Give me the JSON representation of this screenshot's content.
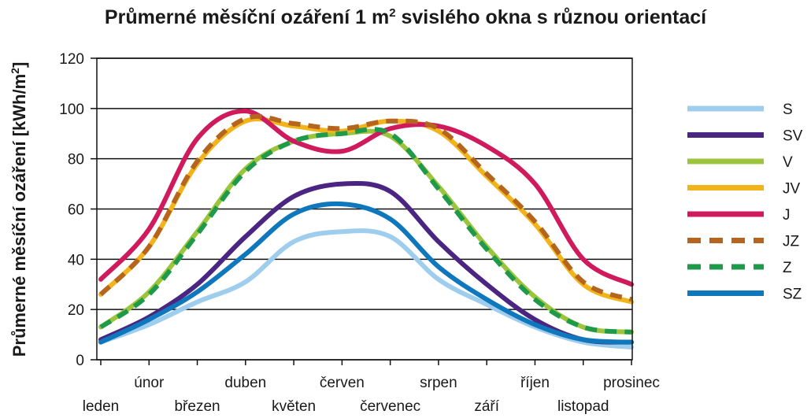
{
  "chart_data": {
    "type": "line",
    "title": "Průmerné měsíční ozáření 1 m² svislého okna s různou orientací",
    "title_parts": {
      "before_sup": "Průmerné měsíční ozáření 1 m",
      "sup": "2",
      "after_sup": " svislého okna s různou orientací"
    },
    "xlabel": "",
    "ylabel": "Průmerné měsíční ozáření [kWh/m²]",
    "ylabel_parts": {
      "before_sup": "Průmerné měsíční ozáření [kWh/m",
      "sup": "2",
      "after_sup": "]"
    },
    "categories": [
      "leden",
      "únor",
      "březen",
      "duben",
      "květen",
      "červen",
      "červenec",
      "srpen",
      "září",
      "říjen",
      "listopad",
      "prosinec"
    ],
    "ylim": [
      0,
      120
    ],
    "yticks": [
      0,
      20,
      40,
      60,
      80,
      100,
      120
    ],
    "grid": true,
    "legend_position": "right",
    "series": [
      {
        "name": "S",
        "color": "#9fcdee",
        "dashed": false,
        "values": [
          7,
          14,
          23,
          31,
          47,
          51,
          49,
          32,
          22,
          13,
          7,
          5
        ]
      },
      {
        "name": "SV",
        "color": "#4a2582",
        "dashed": false,
        "values": [
          8,
          17,
          30,
          49,
          65,
          70,
          67,
          47,
          30,
          16,
          8,
          7
        ]
      },
      {
        "name": "V",
        "color": "#9cc43c",
        "dashed": false,
        "values": [
          13,
          27,
          51,
          76,
          87,
          90,
          89,
          69,
          45,
          25,
          13,
          11
        ]
      },
      {
        "name": "JV",
        "color": "#f2b41b",
        "dashed": false,
        "values": [
          26,
          45,
          78,
          95,
          93,
          91,
          95,
          91,
          73,
          54,
          30,
          23
        ]
      },
      {
        "name": "J",
        "color": "#cf1b5d",
        "dashed": false,
        "values": [
          32,
          52,
          88,
          99,
          87,
          83,
          92,
          93,
          85,
          70,
          40,
          30
        ]
      },
      {
        "name": "JZ",
        "color": "#b5651d",
        "dashed": true,
        "values": [
          26,
          45,
          79,
          96,
          94,
          92,
          95,
          92,
          74,
          55,
          31,
          24
        ]
      },
      {
        "name": "Z",
        "color": "#1f9a4b",
        "dashed": true,
        "values": [
          13,
          26,
          50,
          75,
          87,
          90,
          90,
          68,
          44,
          24,
          13,
          11
        ]
      },
      {
        "name": "SZ",
        "color": "#0f77bc",
        "dashed": false,
        "values": [
          7,
          16,
          27,
          42,
          58,
          62,
          56,
          37,
          24,
          14,
          8,
          7
        ]
      }
    ]
  }
}
